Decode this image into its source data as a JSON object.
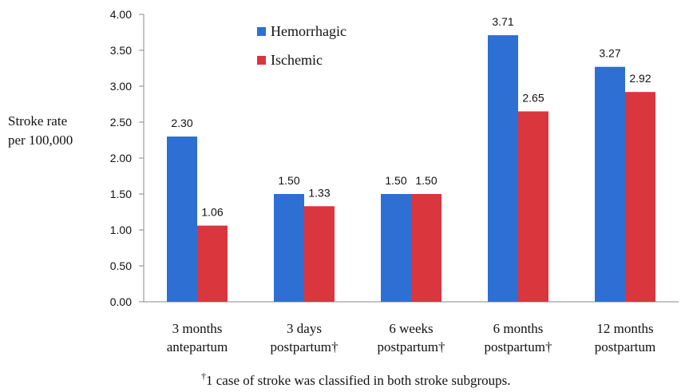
{
  "chart_data": {
    "type": "bar",
    "ylabel_lines": [
      "Stroke rate",
      "per 100,000"
    ],
    "categories": [
      [
        "3 months",
        "antepartum"
      ],
      [
        "3 days",
        "postpartum†"
      ],
      [
        "6 weeks",
        "postpartum†"
      ],
      [
        "6 months",
        "postpartum†"
      ],
      [
        "12 months",
        "postpartum"
      ]
    ],
    "series": [
      {
        "name": "Hemorrhagic",
        "color": "#2e6fd3",
        "values": [
          2.3,
          1.5,
          1.5,
          3.71,
          3.27
        ],
        "labels": [
          "2.30",
          "1.50",
          "1.50",
          "3.71",
          "3.27"
        ]
      },
      {
        "name": "Ischemic",
        "color": "#d9363e",
        "values": [
          1.06,
          1.33,
          1.5,
          2.65,
          2.92
        ],
        "labels": [
          "1.06",
          "1.33",
          "1.50",
          "2.65",
          "2.92"
        ]
      }
    ],
    "ylim": [
      0,
      4
    ],
    "yticks": [
      "0.00",
      "0.50",
      "1.00",
      "1.50",
      "2.00",
      "2.50",
      "3.00",
      "3.50",
      "4.00"
    ],
    "legend_position": "top-left"
  },
  "footnote": {
    "mark": "†",
    "text": "1 case of stroke was classified in both stroke subgroups."
  }
}
